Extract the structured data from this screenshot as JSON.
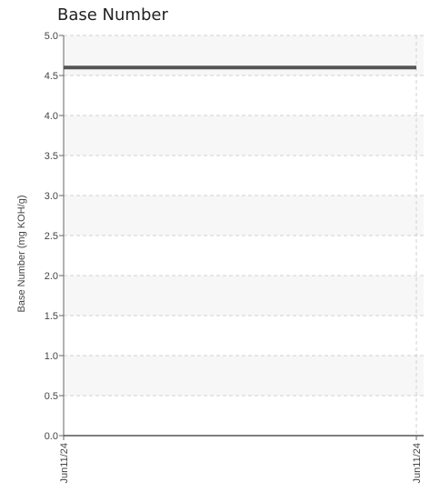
{
  "chart_data": {
    "type": "line",
    "title": "Base Number",
    "xlabel": "",
    "ylabel": "Base Number (mg KOH/g)",
    "x": [
      "Jun11/24",
      "Jun11/24"
    ],
    "xticks": [
      "Jun11/24",
      "Jun11/24"
    ],
    "ylim": [
      0,
      5.0
    ],
    "yticks": [
      "0.0",
      "0.5",
      "1.0",
      "1.5",
      "2.0",
      "2.5",
      "3.0",
      "3.5",
      "4.0",
      "4.5",
      "5.0"
    ],
    "series": [
      {
        "values": [
          4.6,
          4.6
        ],
        "color": "#555555"
      }
    ],
    "grid": true,
    "band_color": "#f7f7f7",
    "grid_color": "#d0d0d0"
  }
}
